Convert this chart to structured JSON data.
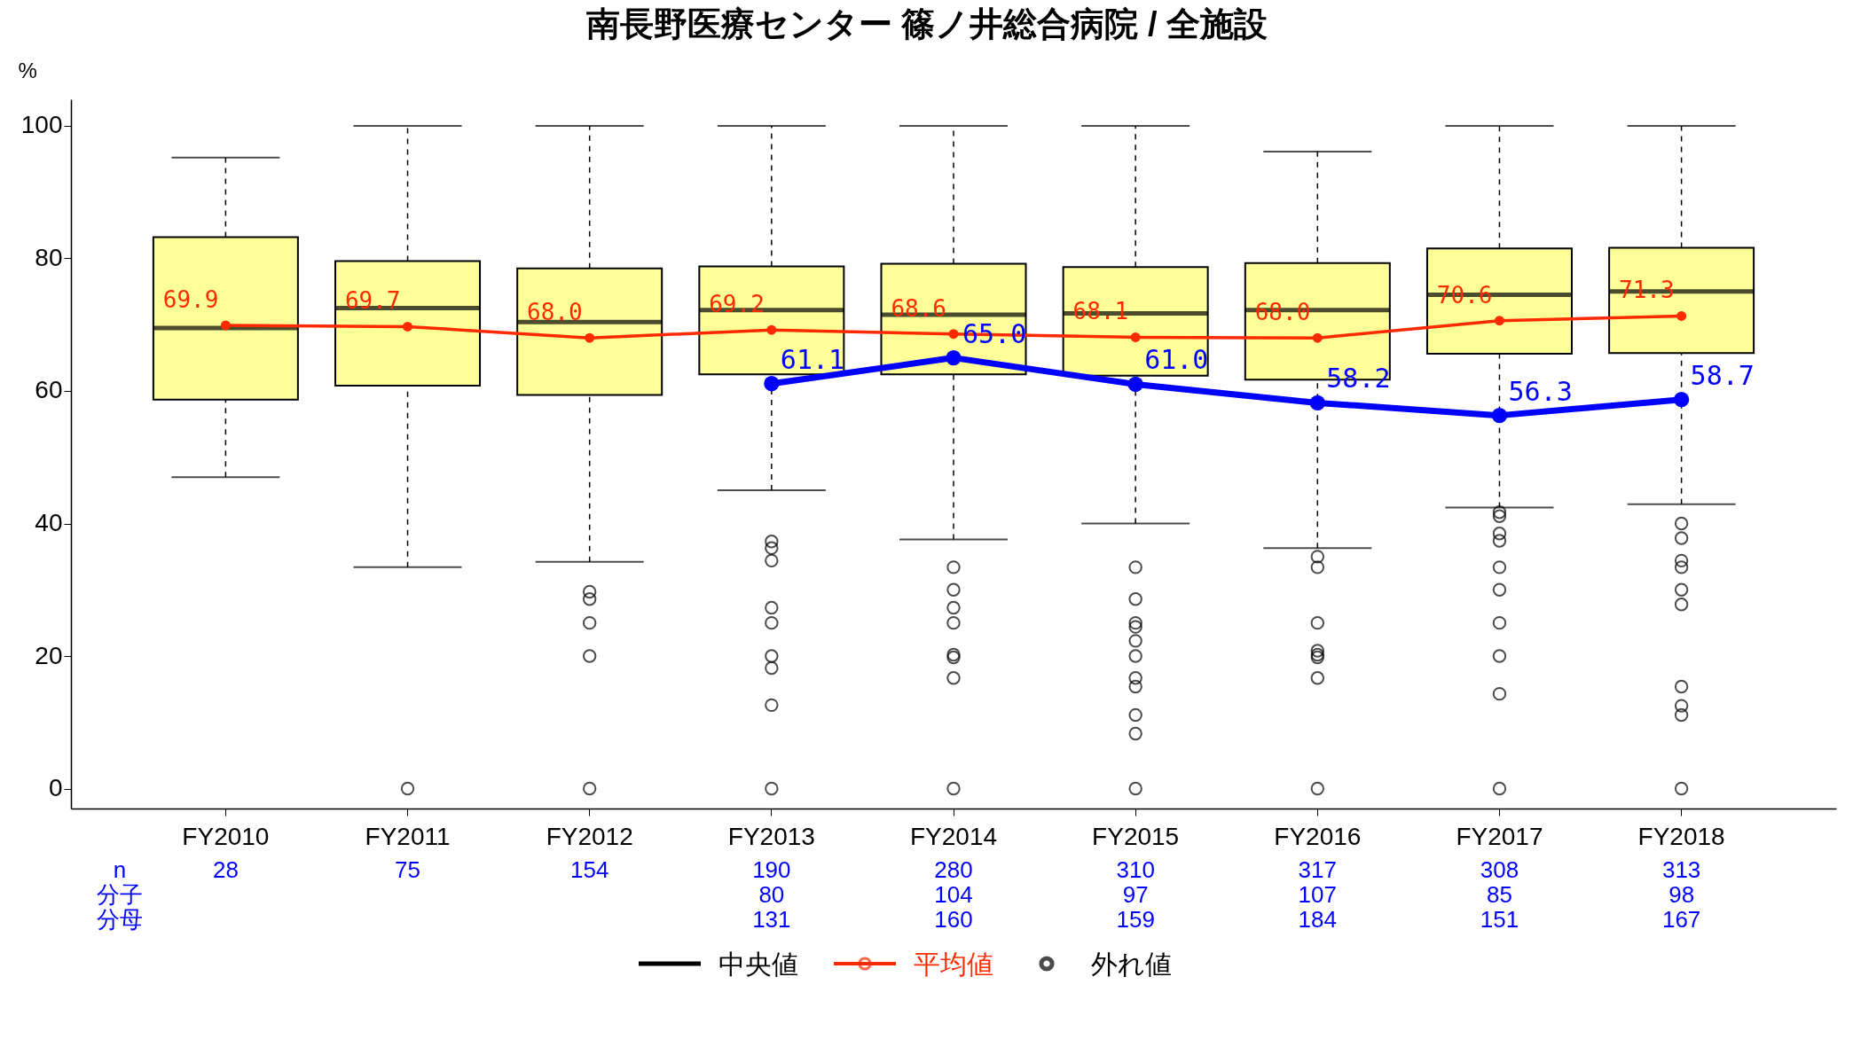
{
  "chart_data": {
    "type": "box",
    "title": "南長野医療センター 篠ノ井総合病院 / 全施設",
    "ylabel": "%",
    "categories": [
      "FY2010",
      "FY2011",
      "FY2012",
      "FY2013",
      "FY2014",
      "FY2015",
      "FY2016",
      "FY2017",
      "FY2018"
    ],
    "ylim": [
      -3,
      104
    ],
    "yticks": [
      0,
      20,
      40,
      60,
      80,
      100
    ],
    "grid": false,
    "legend": "bottom",
    "series": [
      {
        "name": "中央値",
        "color": "#ffff99",
        "boxes": [
          {
            "low": 47.0,
            "q1": 58.7,
            "median": 69.5,
            "q3": 83.2,
            "high": 95.2
          },
          {
            "low": 33.4,
            "q1": 60.8,
            "median": 72.5,
            "q3": 79.6,
            "high": 100,
            "outliers": [
              0
            ]
          },
          {
            "low": 34.2,
            "q1": 59.4,
            "median": 70.4,
            "q3": 78.5,
            "high": 100,
            "outliers": [
              29.7,
              28.6,
              25,
              20,
              0
            ]
          },
          {
            "low": 45.0,
            "q1": 62.5,
            "median": 72.2,
            "q3": 78.8,
            "high": 100,
            "outliers": [
              37.3,
              36.3,
              34.4,
              27.3,
              25,
              20,
              18.2,
              12.6,
              0
            ]
          },
          {
            "low": 37.6,
            "q1": 62.5,
            "median": 71.5,
            "q3": 79.2,
            "high": 100,
            "outliers": [
              33.4,
              30.0,
              27.3,
              25,
              20.2,
              19.8,
              16.7,
              0
            ]
          },
          {
            "low": 40.0,
            "q1": 62.3,
            "median": 71.7,
            "q3": 78.7,
            "high": 100,
            "outliers": [
              33.4,
              28.6,
              25,
              24.4,
              22.3,
              20,
              16.7,
              15.4,
              11.1,
              8.3,
              0
            ]
          },
          {
            "low": 36.3,
            "q1": 61.7,
            "median": 72.2,
            "q3": 79.3,
            "high": 96.1,
            "outliers": [
              35.0,
              33.4,
              25,
              20.8,
              20.2,
              19.8,
              16.7,
              0
            ]
          },
          {
            "low": 42.4,
            "q1": 65.6,
            "median": 74.5,
            "q3": 81.5,
            "high": 100,
            "outliers": [
              41.7,
              41.1,
              38.5,
              37.4,
              33.4,
              30.0,
              25,
              20,
              14.3,
              0
            ]
          },
          {
            "low": 42.9,
            "q1": 65.7,
            "median": 75.0,
            "q3": 81.6,
            "high": 100,
            "outliers": [
              40.0,
              37.8,
              34.4,
              33.4,
              30.0,
              27.8,
              15.4,
              12.5,
              11.1,
              0
            ]
          }
        ]
      },
      {
        "type": "line",
        "name": "平均値",
        "color": "#ff2a00",
        "marker": "circle",
        "values": [
          69.9,
          69.7,
          68.0,
          69.2,
          68.6,
          68.1,
          68.0,
          70.6,
          71.3
        ],
        "value_labels": [
          "69.9",
          "69.7",
          "68.0",
          "69.2",
          "68.6",
          "68.1",
          "68.0",
          "70.6",
          "71.3"
        ]
      },
      {
        "type": "line",
        "color": "#0000ff",
        "marker": "circle",
        "values": [
          null,
          null,
          null,
          61.1,
          65.0,
          61.0,
          58.2,
          56.3,
          58.7
        ],
        "value_labels": [
          null,
          null,
          null,
          "61.1",
          "65.0",
          "61.0",
          "58.2",
          "56.3",
          "58.7"
        ]
      }
    ],
    "annotations": [
      "外れ値",
      "n",
      "分子",
      "分母",
      "28",
      "75",
      "154",
      "190",
      "280",
      "310",
      "317",
      "308",
      "313",
      "80",
      "104",
      "97",
      "107",
      "85",
      "98",
      "131",
      "160",
      "159",
      "184",
      "151",
      "167"
    ]
  }
}
